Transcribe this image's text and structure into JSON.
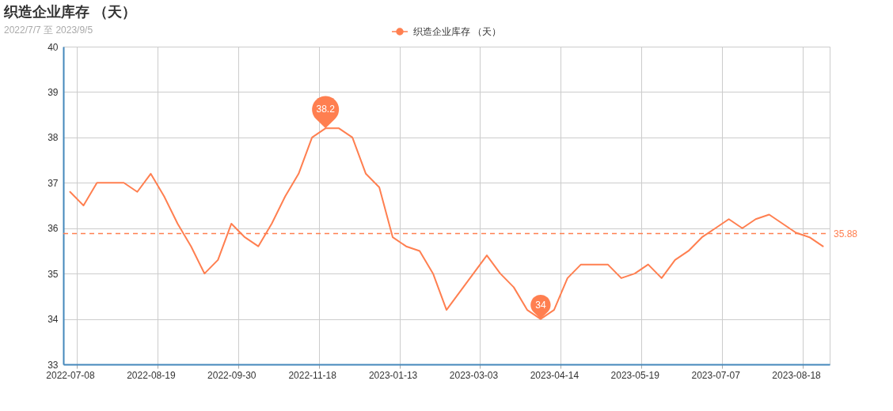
{
  "chart_data": {
    "type": "line",
    "title": "织造企业库存 （天）",
    "subtitle": "2022/7/7 至 2023/9/5",
    "categories": [
      "2022-07-08",
      null,
      null,
      null,
      null,
      null,
      "2022-08-19",
      null,
      null,
      null,
      null,
      null,
      "2022-09-30",
      null,
      null,
      null,
      null,
      null,
      "2022-11-18",
      null,
      null,
      null,
      null,
      null,
      "2023-01-13",
      null,
      null,
      null,
      null,
      null,
      "2023-03-03",
      null,
      null,
      null,
      null,
      null,
      "2023-04-14",
      null,
      null,
      null,
      null,
      null,
      "2023-05-19",
      null,
      null,
      null,
      null,
      null,
      "2023-07-07",
      null,
      null,
      null,
      null,
      null,
      "2023-08-18",
      null,
      null
    ],
    "series": [
      {
        "name": "织造企业库存 （天）",
        "color": "#ff7f50",
        "values": [
          36.8,
          36.5,
          37.0,
          37.0,
          37.0,
          36.8,
          37.2,
          36.7,
          36.1,
          35.6,
          35.0,
          35.3,
          36.1,
          35.8,
          35.6,
          36.1,
          36.7,
          37.2,
          38.0,
          38.2,
          38.2,
          38.0,
          37.2,
          36.9,
          35.8,
          35.6,
          35.5,
          35.0,
          34.2,
          34.6,
          35.0,
          35.4,
          35.0,
          34.7,
          34.2,
          34.0,
          34.2,
          34.9,
          35.2,
          35.2,
          35.2,
          34.9,
          35.0,
          35.2,
          34.9,
          35.3,
          35.5,
          35.8,
          36.0,
          36.2,
          36.0,
          36.2,
          36.3,
          36.1,
          35.9,
          35.8,
          35.6
        ]
      }
    ],
    "ylim": [
      33,
      40
    ],
    "yticks": [
      33,
      34,
      35,
      36,
      37,
      38,
      39,
      40
    ],
    "ref_lines": [
      {
        "axis": "y",
        "value": 35.88,
        "label": "35.88",
        "color": "#ff7f50",
        "line_style": "dashed"
      }
    ],
    "annotations": [
      {
        "text": "38.2",
        "y": 38.2
      },
      {
        "text": "34",
        "y": 34
      }
    ],
    "grid": true,
    "legend": "top"
  }
}
